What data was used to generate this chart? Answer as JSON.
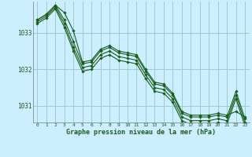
{
  "title": "Graphe pression niveau de la mer (hPa)",
  "background_color": "#cceeff",
  "grid_color": "#99cccc",
  "line_color": "#1a5c1a",
  "xlim": [
    -0.5,
    23.5
  ],
  "ylim": [
    1030.55,
    1033.85
  ],
  "yticks": [
    1031,
    1032,
    1033
  ],
  "xticks": [
    0,
    1,
    2,
    3,
    4,
    5,
    6,
    7,
    8,
    9,
    10,
    11,
    12,
    13,
    14,
    15,
    16,
    17,
    18,
    19,
    20,
    21,
    22,
    23
  ],
  "series": [
    [
      1033.35,
      1033.5,
      1033.75,
      1033.55,
      1033.05,
      1032.2,
      1032.25,
      1032.55,
      1032.65,
      1032.5,
      1032.45,
      1032.4,
      1032.0,
      1031.65,
      1031.6,
      1031.35,
      1030.85,
      1030.75,
      1030.75,
      1030.75,
      1030.8,
      1030.75,
      1030.85,
      1030.7
    ],
    [
      1033.35,
      1033.5,
      1033.75,
      1033.35,
      1032.75,
      1032.15,
      1032.2,
      1032.5,
      1032.6,
      1032.45,
      1032.4,
      1032.35,
      1031.95,
      1031.6,
      1031.55,
      1031.3,
      1030.8,
      1030.7,
      1030.7,
      1030.7,
      1030.75,
      1030.7,
      1031.4,
      1030.65
    ],
    [
      1033.3,
      1033.45,
      1033.7,
      1033.25,
      1032.6,
      1032.05,
      1032.1,
      1032.4,
      1032.5,
      1032.35,
      1032.3,
      1032.25,
      1031.85,
      1031.5,
      1031.45,
      1031.2,
      1030.7,
      1030.6,
      1030.6,
      1030.6,
      1030.65,
      1030.6,
      1031.3,
      1030.55
    ],
    [
      1033.25,
      1033.4,
      1033.65,
      1033.15,
      1032.5,
      1031.95,
      1032.0,
      1032.3,
      1032.4,
      1032.25,
      1032.2,
      1032.15,
      1031.75,
      1031.4,
      1031.35,
      1031.1,
      1030.6,
      1030.5,
      1030.5,
      1030.5,
      1030.55,
      1030.5,
      1031.2,
      1030.45
    ]
  ]
}
